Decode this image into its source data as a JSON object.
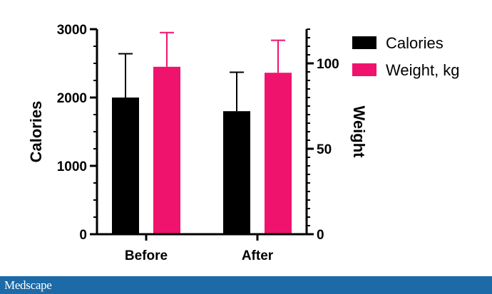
{
  "chart_data": {
    "type": "bar",
    "categories": [
      "Before",
      "After"
    ],
    "series": [
      {
        "name": "Calories",
        "axis": "left",
        "color": "#000000",
        "values": [
          2000,
          1800
        ],
        "error": [
          640,
          570
        ]
      },
      {
        "name": "Weight, kg",
        "axis": "right",
        "color": "#f0136e",
        "values": [
          98,
          94.5
        ],
        "error": [
          20,
          19
        ]
      }
    ],
    "y_left": {
      "label": "Calories",
      "lim": [
        0,
        3000
      ],
      "ticks": [
        0,
        1000,
        2000,
        3000
      ]
    },
    "y_right": {
      "label": "Weight",
      "lim": [
        0,
        120
      ],
      "ticks": [
        0,
        50,
        100
      ]
    },
    "legend": "right",
    "grid": false
  },
  "footer": {
    "brand": "Medscape"
  }
}
